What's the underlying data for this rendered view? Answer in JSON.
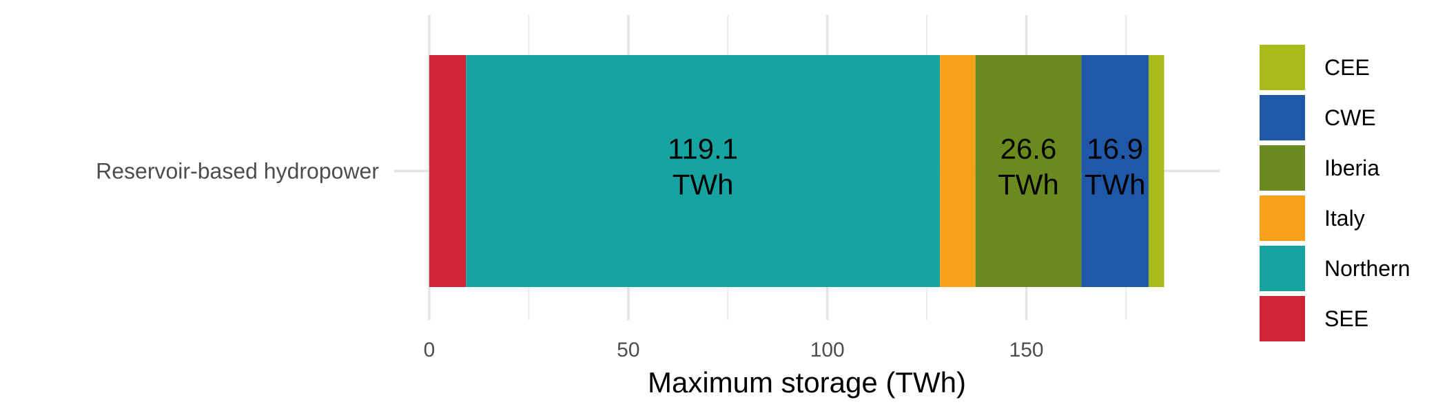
{
  "chart_data": {
    "type": "bar",
    "orientation": "horizontal",
    "stacked": true,
    "categories": [
      "Reservoir-based hydropower"
    ],
    "xlabel": "Maximum storage (TWh)",
    "ylabel": "",
    "title": "",
    "xlim": [
      0,
      193
    ],
    "x_ticks": [
      0,
      50,
      100,
      150
    ],
    "grid": true,
    "legend_position": "right",
    "stack_order": [
      "SEE",
      "Northern",
      "Italy",
      "Iberia",
      "CWE",
      "CEE"
    ],
    "legend_order": [
      "CEE",
      "CWE",
      "Iberia",
      "Italy",
      "Northern",
      "SEE"
    ],
    "series": [
      {
        "name": "SEE",
        "values": [
          9.2
        ],
        "color": "#CE2433",
        "label": ""
      },
      {
        "name": "Northern",
        "values": [
          119.1
        ],
        "color": "#17A3A0",
        "label": "119.1\nTWh"
      },
      {
        "name": "Italy",
        "values": [
          8.9
        ],
        "color": "#F7A01A",
        "label": ""
      },
      {
        "name": "Iberia",
        "values": [
          26.6
        ],
        "color": "#6A8A1F",
        "label": "26.6\nTWh"
      },
      {
        "name": "CWE",
        "values": [
          16.9
        ],
        "color": "#2058A8",
        "label": "16.9\nTWh"
      },
      {
        "name": "CEE",
        "values": [
          3.9
        ],
        "color": "#A9BA1B",
        "label": ""
      }
    ]
  }
}
